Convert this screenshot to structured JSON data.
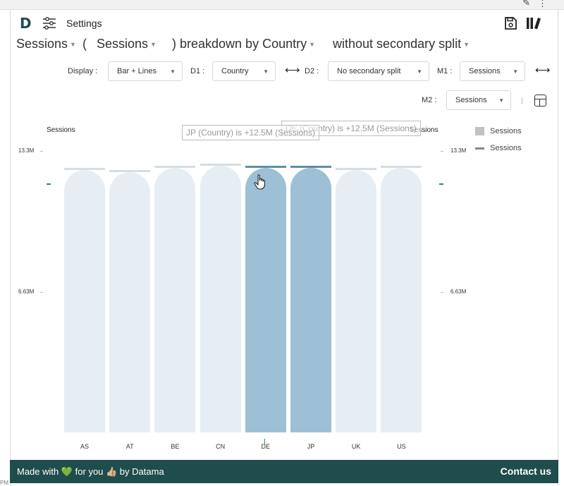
{
  "app": {
    "settings_label": "Settings"
  },
  "title": {
    "metric1": "Sessions",
    "open_paren": "(",
    "metric2": "Sessions",
    "breakdown": ") breakdown by Country",
    "split": "without secondary split"
  },
  "controls": {
    "display_label": "Display :",
    "display_value": "Bar + Lines",
    "d1_label": "D1 :",
    "d1_value": "Country",
    "d2_label": "D2 :",
    "d2_value": "No secondary split",
    "m1_label": "M1 :",
    "m1_value": "Sessions",
    "m2_label": "M2 :",
    "m2_value": "Sessions"
  },
  "chart_data": {
    "type": "bar",
    "left_axis_title": "Sessions",
    "right_axis_title": "Sessions",
    "y_ticks": [
      "13.3M",
      "6.63M"
    ],
    "categories": [
      "AS",
      "AT",
      "BE",
      "CN",
      "DE",
      "JP",
      "UK",
      "US"
    ],
    "series": [
      {
        "name": "Sessions",
        "kind": "bar",
        "values": [
          12.4,
          12.3,
          12.5,
          12.6,
          12.5,
          12.5,
          12.4,
          12.5
        ]
      },
      {
        "name": "Sessions",
        "kind": "line",
        "values": [
          12.4,
          12.3,
          12.5,
          12.6,
          12.5,
          12.5,
          12.4,
          12.5
        ]
      }
    ],
    "highlighted": [
      "DE",
      "JP"
    ],
    "ylim": [
      0,
      13.3
    ],
    "legend": [
      "Sessions",
      "Sessions"
    ],
    "legend_position": "right"
  },
  "tooltips": {
    "jp": "JP (Country) is +12.5M (Sessions)",
    "de": "DE (Country) is +12.5M (Sessions)"
  },
  "colors": {
    "bar_default": "#e6eef4",
    "bar_highlight": "#9ec0d6",
    "footer_bg": "#1f4d4b"
  },
  "footer": {
    "made_with": "Made with 💚 for you 👍🏼 by Datama",
    "contact": "Contact us"
  },
  "status": {
    "pm": "PM"
  }
}
